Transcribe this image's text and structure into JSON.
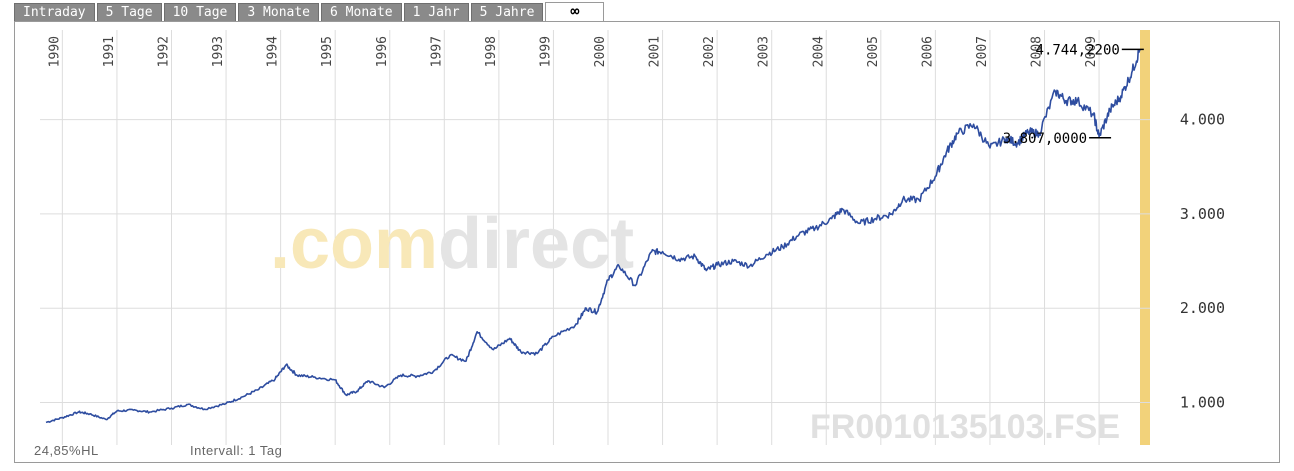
{
  "tabs": [
    {
      "label": "Intraday"
    },
    {
      "label": "5 Tage"
    },
    {
      "label": "10 Tage"
    },
    {
      "label": "3 Monate"
    },
    {
      "label": "6 Monate"
    },
    {
      "label": "1 Jahr"
    },
    {
      "label": "5 Jahre"
    },
    {
      "label": "∞"
    }
  ],
  "active_tab": 7,
  "footer": {
    "hl": "24,85%HL",
    "interval": "Intervall: 1 Tag"
  },
  "watermark": {
    "brand": ".comdirect",
    "symbol": "FR0010135103.FSE"
  },
  "colors": {
    "line": "#2e4da0",
    "grid": "#dddddd",
    "highlight": "#f2d27a",
    "watermark_orange": "#f8e8b8",
    "watermark_grey": "#e4e4e4"
  },
  "chart_data": {
    "type": "line",
    "x_ticks": [
      "1990",
      "1991",
      "1992",
      "1993",
      "1994",
      "1995",
      "1996",
      "1997",
      "1998",
      "1999",
      "2000",
      "2001",
      "2002",
      "2003",
      "2004",
      "2005",
      "2006",
      "2007",
      "2008",
      "2009"
    ],
    "y_ticks": [
      "1.000",
      "2.000",
      "3.000",
      "4.000"
    ],
    "ylim": [
      550,
      4950
    ],
    "xlim": [
      1989.7,
      2009.75
    ],
    "grid": true,
    "annotations": [
      {
        "label": "4.744,2200",
        "x": 2009.6,
        "y": 4744.22
      },
      {
        "label": "3.807,0000",
        "x": 2009.0,
        "y": 3807.0
      }
    ],
    "series": [
      {
        "x": [
          1989.7,
          1990.0,
          1990.3,
          1990.5,
          1990.8,
          1991.0,
          1991.3,
          1991.6,
          1992.0,
          1992.3,
          1992.6,
          1993.0,
          1993.3,
          1993.6,
          1993.9,
          1994.1,
          1994.3,
          1994.6,
          1995.0,
          1995.2,
          1995.4,
          1995.6,
          1995.9,
          1996.2,
          1996.5,
          1996.8,
          1997.1,
          1997.4,
          1997.6,
          1997.9,
          1998.2,
          1998.4,
          1998.7,
          1999.0,
          1999.4,
          1999.6,
          1999.8,
          2000.0,
          2000.2,
          2000.5,
          2000.8,
          2001.0,
          2001.3,
          2001.6,
          2001.8,
          2002.0,
          2002.3,
          2002.6,
          2002.9,
          2003.2,
          2003.5,
          2003.8,
          2004.1,
          2004.3,
          2004.6,
          2004.9,
          2005.2,
          2005.4,
          2005.7,
          2006.0,
          2006.2,
          2006.4,
          2006.7,
          2007.0,
          2007.3,
          2007.5,
          2007.7,
          2007.9,
          2008.2,
          2008.4,
          2008.6,
          2008.9,
          2009.0,
          2009.2,
          2009.4,
          2009.6,
          2009.75
        ],
        "y": [
          790,
          840,
          900,
          880,
          820,
          910,
          920,
          900,
          940,
          980,
          930,
          990,
          1060,
          1140,
          1250,
          1400,
          1290,
          1270,
          1240,
          1080,
          1120,
          1230,
          1160,
          1290,
          1280,
          1330,
          1500,
          1440,
          1750,
          1560,
          1680,
          1540,
          1520,
          1700,
          1820,
          2000,
          1960,
          2300,
          2450,
          2240,
          2600,
          2600,
          2520,
          2550,
          2400,
          2460,
          2500,
          2450,
          2570,
          2650,
          2780,
          2850,
          2950,
          3050,
          2900,
          2950,
          3000,
          3150,
          3150,
          3400,
          3650,
          3850,
          3950,
          3700,
          3800,
          3750,
          3870,
          3850,
          4300,
          4200,
          4200,
          4050,
          3820,
          4100,
          4250,
          4500,
          4744.22
        ]
      }
    ]
  }
}
